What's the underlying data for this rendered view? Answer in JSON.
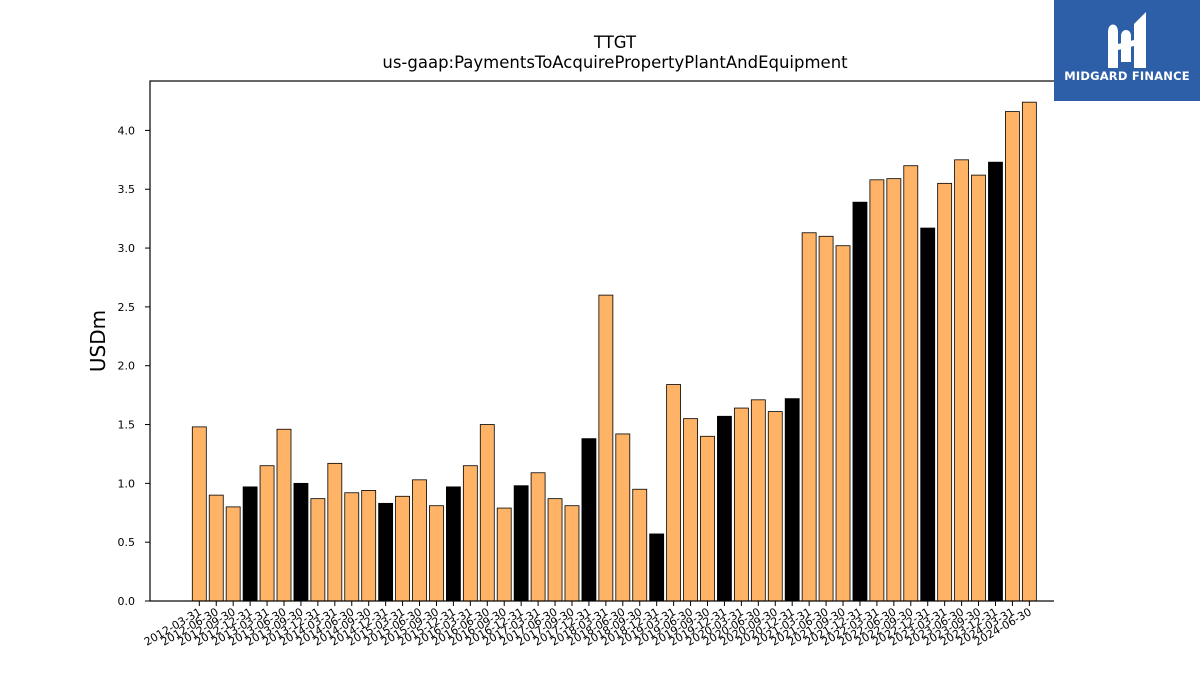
{
  "chart_data": {
    "type": "bar",
    "title": "TTGT",
    "subtitle": "us-gaap:PaymentsToAcquirePropertyPlantAndEquipment",
    "xlabel": "",
    "ylabel": "USDm",
    "ylim": [
      0,
      4.42
    ],
    "yticks": [
      "0.0",
      "0.5",
      "1.0",
      "1.5",
      "2.0",
      "2.5",
      "3.0",
      "3.5",
      "4.0"
    ],
    "grid": false,
    "colors": {
      "quarter": "#ffb366",
      "year_end": "#000000",
      "edge": "#000000"
    },
    "categories": [
      "2012-03-31",
      "2012-06-30",
      "2012-09-30",
      "2012-12-31",
      "2013-03-31",
      "2013-06-30",
      "2013-09-30",
      "2013-12-31",
      "2014-03-31",
      "2014-06-30",
      "2014-09-30",
      "2014-12-31",
      "2015-03-31",
      "2015-06-30",
      "2015-09-30",
      "2015-12-31",
      "2016-03-31",
      "2016-06-30",
      "2016-09-30",
      "2016-12-31",
      "2017-03-31",
      "2017-06-30",
      "2017-09-30",
      "2017-12-31",
      "2018-03-31",
      "2018-06-30",
      "2018-09-30",
      "2018-12-31",
      "2019-03-31",
      "2019-06-30",
      "2019-09-30",
      "2019-12-31",
      "2020-03-31",
      "2020-06-30",
      "2020-09-30",
      "2020-12-31",
      "2021-03-31",
      "2021-06-30",
      "2021-09-30",
      "2021-12-31",
      "2022-03-31",
      "2022-06-30",
      "2022-09-30",
      "2022-12-31",
      "2023-03-31",
      "2023-06-30",
      "2023-09-30",
      "2023-12-31",
      "2024-03-31",
      "2024-06-30"
    ],
    "values": [
      1.48,
      0.9,
      0.8,
      0.97,
      1.15,
      1.46,
      1.0,
      0.87,
      1.17,
      0.92,
      0.94,
      0.83,
      0.89,
      1.03,
      0.81,
      0.97,
      1.15,
      1.5,
      0.79,
      0.98,
      1.09,
      0.87,
      0.81,
      1.38,
      2.6,
      1.42,
      0.95,
      0.57,
      1.84,
      1.55,
      1.4,
      1.57,
      1.64,
      1.71,
      1.61,
      1.72,
      3.13,
      3.1,
      3.02,
      3.39,
      3.58,
      3.59,
      3.7,
      3.17,
      3.55,
      3.75,
      3.62,
      3.73,
      4.16,
      4.24
    ],
    "year_end": [
      false,
      false,
      false,
      true,
      false,
      false,
      true,
      false,
      false,
      false,
      false,
      true,
      false,
      false,
      false,
      true,
      false,
      false,
      false,
      true,
      false,
      false,
      false,
      true,
      false,
      false,
      false,
      true,
      false,
      false,
      false,
      true,
      false,
      false,
      false,
      true,
      false,
      false,
      false,
      true,
      false,
      false,
      false,
      true,
      false,
      false,
      false,
      true,
      false,
      false
    ]
  },
  "logo": {
    "text": "MIDGARD FINANCE"
  }
}
